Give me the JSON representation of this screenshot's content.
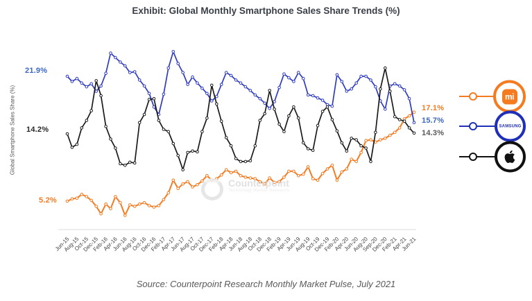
{
  "title": "Exhibit: Global Monthly Smartphone Sales Share Trends (%)",
  "source": "Source: Counterpoint Research Monthly Market Pulse, July 2021",
  "y_axis_label": "Global Smartphone Sales Share (%)",
  "watermark": {
    "name": "Counterpoint",
    "subtitle": "Technology Market Research"
  },
  "value_labels": {
    "left": [
      {
        "text": "21.9%",
        "series": "Samsung",
        "color": "#3a66c4"
      },
      {
        "text": "14.2%",
        "series": "Apple",
        "color": "#262626"
      },
      {
        "text": "5.2%",
        "series": "Xiaomi",
        "color": "#f47b20"
      }
    ],
    "right": [
      {
        "text": "17.1%",
        "series": "Xiaomi",
        "color": "#f47b20"
      },
      {
        "text": "15.7%",
        "series": "Samsung",
        "color": "#3a66c4"
      },
      {
        "text": "14.3%",
        "series": "Apple",
        "color": "#595959"
      }
    ]
  },
  "legend": [
    {
      "brand": "Xiaomi",
      "logo_text": "mi",
      "color": "#f47b20"
    },
    {
      "brand": "Samsung",
      "logo_text": "SAMSUNG",
      "color": "#1f2fb8"
    },
    {
      "brand": "Apple",
      "logo_text": "",
      "color": "#111111"
    }
  ],
  "chart_data": {
    "type": "line",
    "title": "Exhibit: Global Monthly Smartphone Sales Share Trends (%)",
    "ylabel": "Global Smartphone Sales Share (%)",
    "ylim": [
      2,
      26
    ],
    "grid": false,
    "legend_position": "right",
    "x_unit": "month",
    "x_range": [
      "Jun-15",
      "Jun-21"
    ],
    "x_tick_labels": [
      "Jun-15",
      "Aug-15",
      "Oct-15",
      "Dec-15",
      "Feb-16",
      "Apr-16",
      "Jun-16",
      "Aug-16",
      "Oct-16",
      "Dec-16",
      "Feb-17",
      "Apr-17",
      "Jun-17",
      "Aug-17",
      "Oct-17",
      "Dec-17",
      "Feb-18",
      "Apr-18",
      "Jun-18",
      "Aug-18",
      "Oct-18",
      "Dec-18",
      "Feb-19",
      "Apr-19",
      "Jun-19",
      "Aug-19",
      "Oct-19",
      "Dec-19",
      "Feb-20",
      "Apr-20",
      "Jun-20",
      "Aug-20",
      "Sep-20",
      "Dec-20",
      "Feb-21",
      "Apr-21",
      "Jun-21"
    ],
    "series": [
      {
        "name": "Xiaomi",
        "color": "#f47b20",
        "start_label": "5.2%",
        "end_label": "17.1%",
        "values": [
          5.2,
          5.5,
          5.6,
          6.1,
          5.8,
          5.3,
          4.5,
          3.5,
          4.8,
          4.2,
          5.8,
          5.0,
          3.3,
          4.7,
          4.5,
          4.8,
          5.0,
          4.6,
          4.4,
          4.6,
          5.4,
          6.3,
          8.0,
          6.9,
          7.5,
          7.8,
          7.1,
          7.4,
          7.9,
          8.6,
          8.0,
          8.2,
          8.7,
          9.4,
          9.0,
          9.2,
          8.6,
          8.4,
          8.3,
          8.2,
          7.8,
          7.5,
          8.3,
          7.7,
          7.8,
          8.4,
          9.2,
          9.2,
          8.6,
          8.8,
          9.8,
          8.2,
          8.0,
          8.9,
          9.5,
          10.0,
          8.0,
          9.1,
          9.5,
          10.8,
          10.5,
          11.7,
          13.3,
          13.4,
          13.1,
          13.4,
          13.6,
          14.0,
          14.4,
          15.0,
          16.2,
          16.6,
          17.1
        ]
      },
      {
        "name": "Samsung",
        "color": "#2e3bbf",
        "start_label": "21.9%",
        "end_label": "15.7%",
        "values": [
          21.9,
          21.2,
          21.6,
          21.0,
          20.5,
          20.9,
          19.9,
          20.6,
          22.3,
          25.0,
          24.4,
          23.8,
          23.3,
          22.4,
          22.5,
          21.4,
          20.6,
          19.6,
          17.8,
          16.8,
          19.5,
          23.0,
          25.2,
          23.6,
          22.4,
          20.8,
          21.8,
          21.0,
          20.3,
          19.6,
          18.6,
          19.2,
          20.8,
          22.4,
          22.0,
          21.4,
          21.0,
          20.5,
          20.0,
          19.4,
          18.9,
          18.3,
          17.6,
          18.5,
          20.4,
          22.2,
          21.7,
          21.2,
          22.4,
          21.6,
          19.4,
          19.3,
          19.0,
          18.7,
          18.1,
          17.9,
          22.1,
          21.2,
          19.9,
          20.2,
          21.0,
          21.9,
          21.9,
          21.4,
          20.5,
          18.6,
          17.5,
          20.6,
          20.9,
          20.6,
          20.1,
          18.9,
          15.7
        ]
      },
      {
        "name": "Apple",
        "color": "#1a1a1a",
        "start_label": "14.2%",
        "end_label": "14.3%",
        "values": [
          14.2,
          12.4,
          12.8,
          15.0,
          16.0,
          17.3,
          21.3,
          19.3,
          15.2,
          13.5,
          12.3,
          10.2,
          10.0,
          10.4,
          10.3,
          15.7,
          16.8,
          18.8,
          18.9,
          16.0,
          14.8,
          14.5,
          12.9,
          11.3,
          9.4,
          11.7,
          11.9,
          11.8,
          14.5,
          16.3,
          20.7,
          18.2,
          15.9,
          13.7,
          12.6,
          10.9,
          10.5,
          10.5,
          10.6,
          12.6,
          16.0,
          16.9,
          20.0,
          17.5,
          15.5,
          14.5,
          16.6,
          17.8,
          16.3,
          13.0,
          12.2,
          12.0,
          15.3,
          17.2,
          17.8,
          16.1,
          14.6,
          13.0,
          11.9,
          13.6,
          13.4,
          12.6,
          12.3,
          10.5,
          14.4,
          20.2,
          23.0,
          19.9,
          16.5,
          16.1,
          15.9,
          15.0,
          14.3
        ]
      }
    ]
  }
}
